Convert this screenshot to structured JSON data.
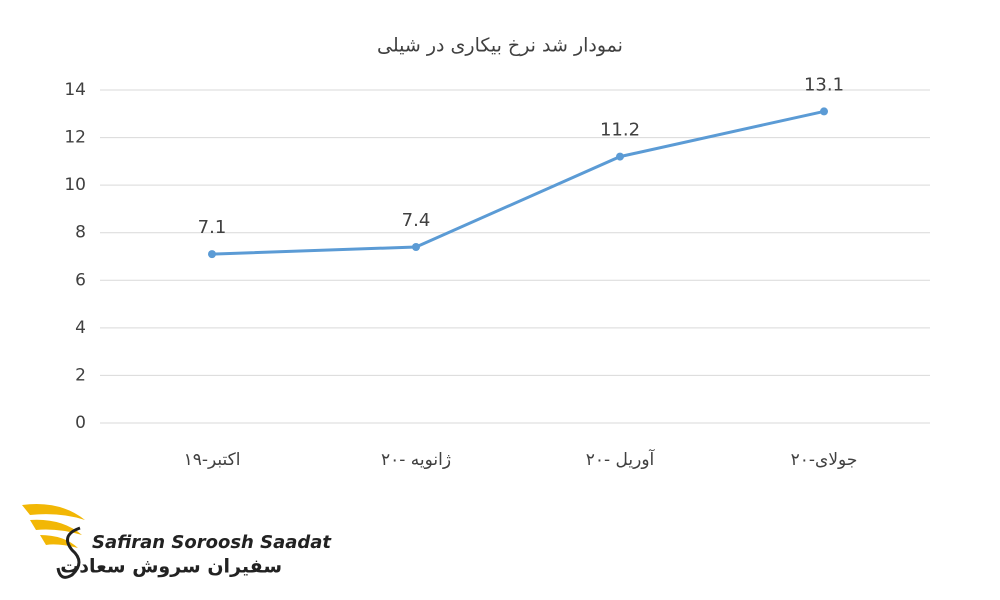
{
  "chart_data": {
    "type": "line",
    "title": "نمودار شد نرخ بیکاری در شیلی",
    "categories": [
      "اکتبر-۱۹",
      "ژانویه -۲۰",
      "آوریل -۲۰",
      "جولای-۲۰"
    ],
    "series": [
      {
        "name": "نرخ بیکاری",
        "color": "#5b9bd5",
        "values": [
          7.1,
          7.4,
          11.2,
          13.1
        ]
      }
    ],
    "ylim": [
      0,
      14
    ],
    "yticks": [
      0,
      2,
      4,
      6,
      8,
      10,
      12,
      14
    ],
    "grid": true,
    "legend": false
  },
  "logo": {
    "text_en": "Safiran Soroosh Saadat",
    "text_fa": "سفیران سروش سعادت"
  }
}
